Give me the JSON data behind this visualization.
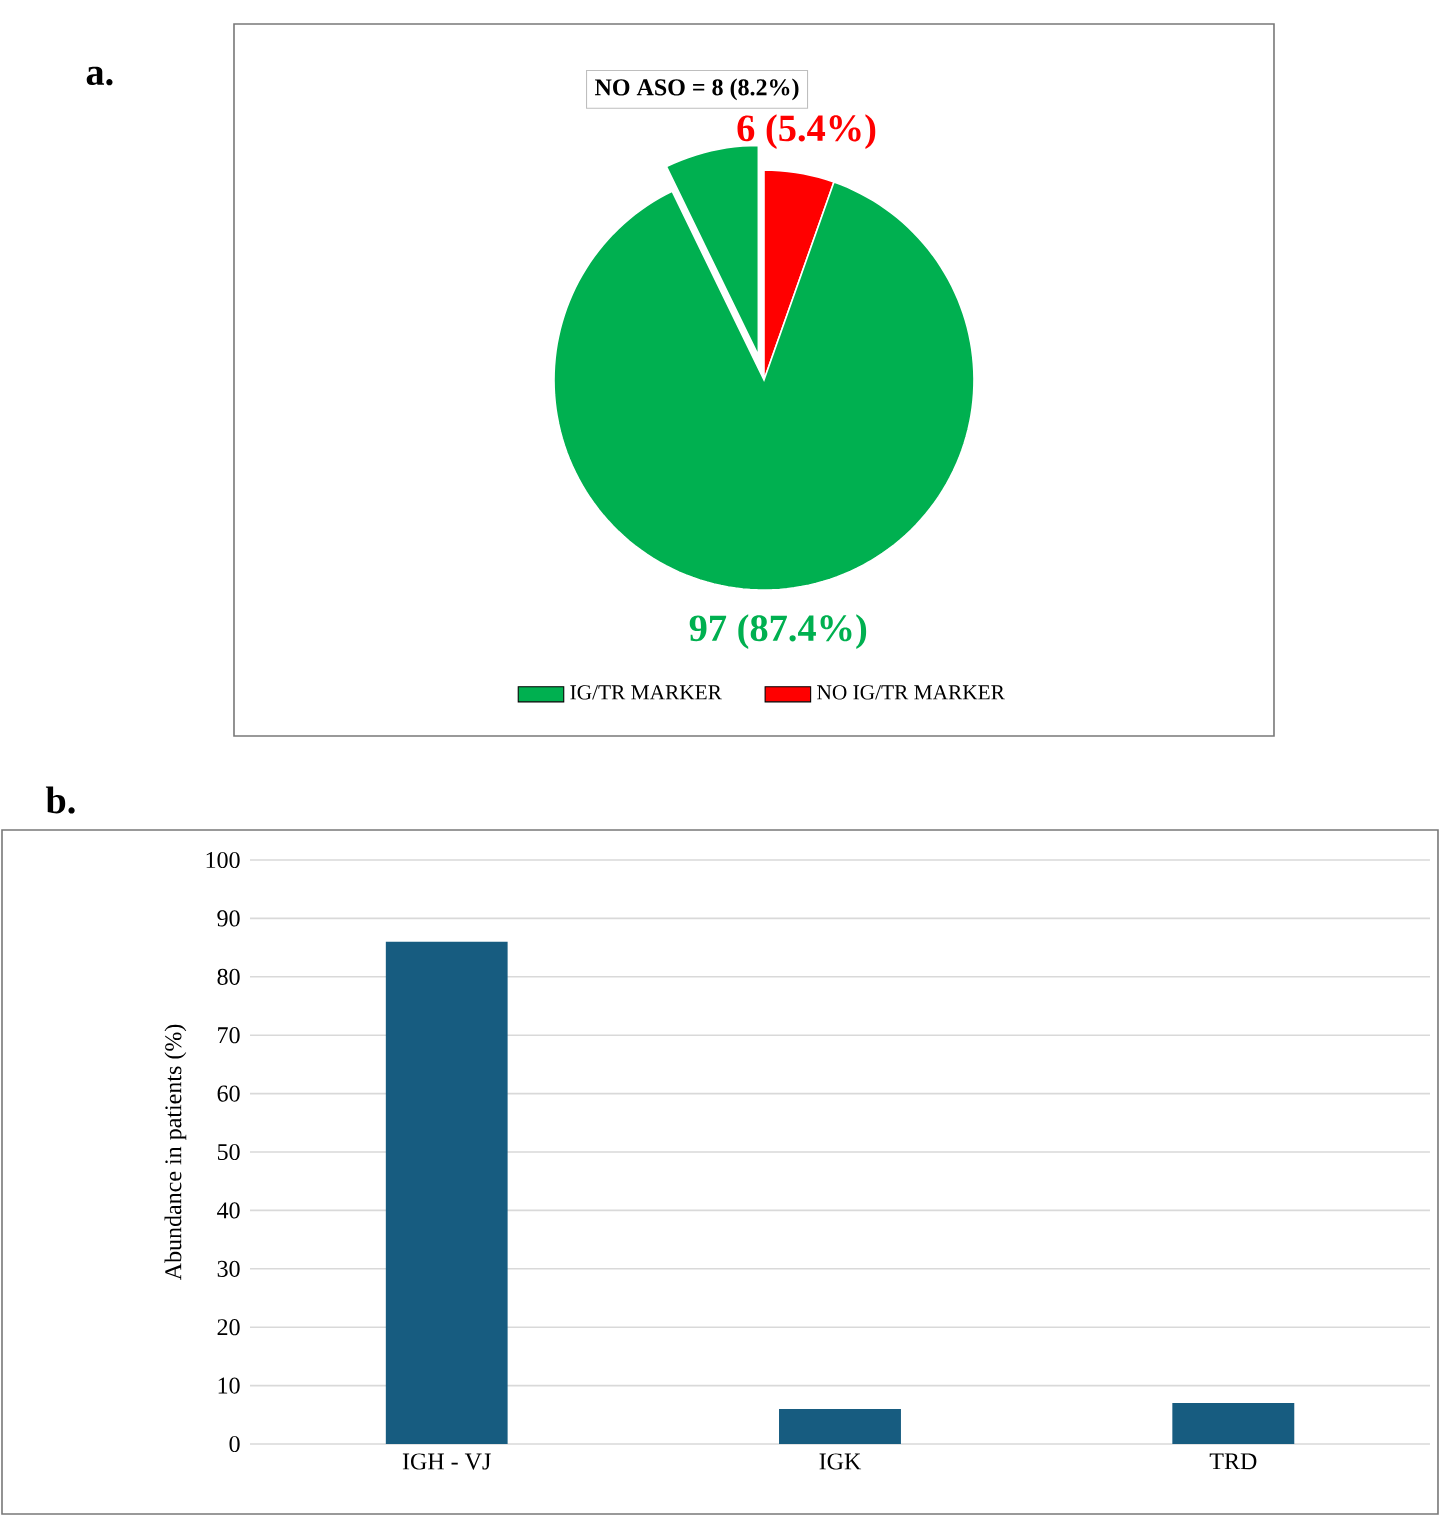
{
  "chart_data": [
    {
      "type": "pie",
      "title": "a.",
      "categories": [
        "NO IG/TR MARKER",
        "IG/TR MARKER",
        null
      ],
      "values": [
        6,
        97,
        8
      ],
      "colors": [
        "#ff0000",
        "#00b050",
        "#00b050"
      ],
      "value_labels": [
        "6 (5.4%)",
        "97 (87.4%)",
        "NO ASO = 8 (8.2%)"
      ],
      "legend": "bottom"
    },
    {
      "type": "bar",
      "title": "b.",
      "categories": [
        "IGH - VJ",
        "IGK",
        "TRD"
      ],
      "values": [
        86,
        6,
        7
      ],
      "color": "#175c80",
      "ylabel": "Abundance in patients (%)",
      "ylim": [
        0,
        100
      ],
      "yticks": [
        0,
        10,
        20,
        30,
        40,
        50,
        60,
        70,
        80,
        90,
        100
      ],
      "grid": "y"
    }
  ]
}
